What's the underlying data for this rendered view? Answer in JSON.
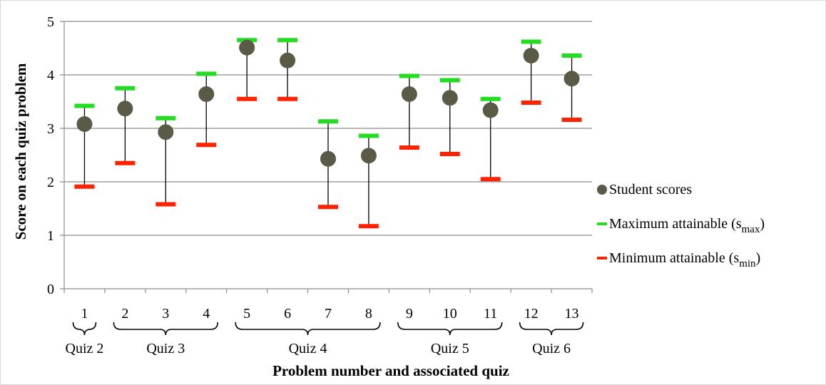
{
  "chart_data": {
    "type": "scatter",
    "title": "",
    "xlabel": "Problem number and associated quiz",
    "ylabel": "Score on each quiz problem",
    "ylim": [
      0,
      5
    ],
    "yticks": [
      "0",
      "1",
      "2",
      "3",
      "4",
      "5"
    ],
    "grid": true,
    "legend_position": "right",
    "categories": [
      "1",
      "2",
      "3",
      "4",
      "5",
      "6",
      "7",
      "8",
      "9",
      "10",
      "11",
      "12",
      "13"
    ],
    "series": [
      {
        "name": "Student scores",
        "color": "#5a5a46",
        "marker": "circle",
        "values": [
          3.08,
          3.37,
          2.93,
          3.64,
          4.51,
          4.27,
          2.43,
          2.49,
          3.64,
          3.57,
          3.34,
          4.36,
          3.93
        ]
      },
      {
        "name": "Maximum attainable (s",
        "sub": "max",
        "tail": ")",
        "color": "#22dd22",
        "marker": "dash",
        "values": [
          3.42,
          3.75,
          3.19,
          4.02,
          4.65,
          4.65,
          3.13,
          2.86,
          3.98,
          3.9,
          3.55,
          4.62,
          4.36
        ]
      },
      {
        "name": "Minimum attainable (s",
        "sub": "min",
        "tail": ")",
        "color": "#ff2200",
        "marker": "dash",
        "values": [
          1.91,
          2.35,
          1.58,
          2.69,
          3.55,
          3.55,
          1.53,
          1.17,
          2.64,
          2.52,
          2.05,
          3.48,
          3.16
        ]
      }
    ],
    "groups": [
      {
        "label": "Quiz 2",
        "from": 1,
        "to": 1
      },
      {
        "label": "Quiz 3",
        "from": 2,
        "to": 4
      },
      {
        "label": "Quiz 4",
        "from": 5,
        "to": 8
      },
      {
        "label": "Quiz 5",
        "from": 9,
        "to": 11
      },
      {
        "label": "Quiz 6",
        "from": 12,
        "to": 13
      }
    ]
  }
}
